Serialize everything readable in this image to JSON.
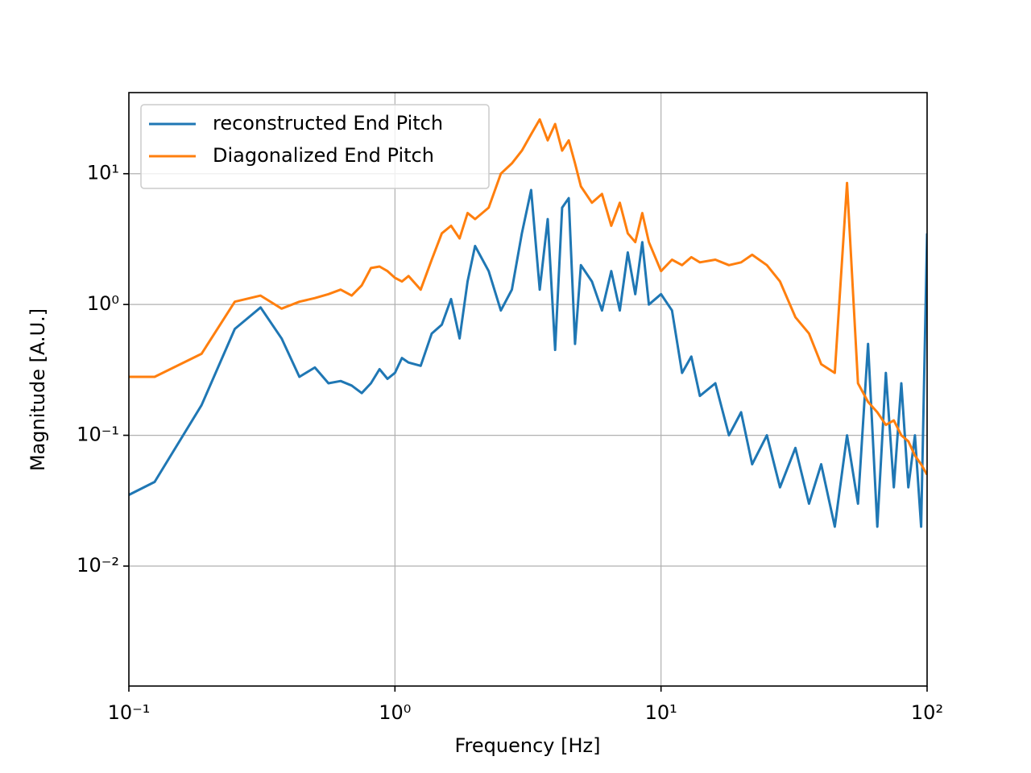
{
  "chart_data": {
    "type": "line",
    "xlabel": "Frequency [Hz]",
    "ylabel": "Magnitude [A.U.]",
    "xscale": "log",
    "yscale": "log",
    "grid": true,
    "legend": "upper left",
    "x": [
      0.1,
      0.125,
      0.1875,
      0.25,
      0.3125,
      0.375,
      0.4375,
      0.5,
      0.5625,
      0.625,
      0.6875,
      0.75,
      0.8125,
      0.875,
      0.9375,
      1.0,
      1.0625,
      1.125,
      1.25,
      1.375,
      1.5,
      1.625,
      1.75,
      1.875,
      2.0,
      2.25,
      2.5,
      2.75,
      3.0,
      3.25,
      3.5,
      3.75,
      4.0,
      4.25,
      4.5,
      4.75,
      5.0,
      5.5,
      6.0,
      6.5,
      7.0,
      7.5,
      8.0,
      8.5,
      9.0,
      10,
      11,
      12,
      13,
      14,
      16,
      18,
      20,
      22,
      25,
      28,
      32,
      36,
      40,
      45,
      50,
      55,
      60,
      65,
      70,
      75,
      80,
      85,
      90,
      95,
      100
    ],
    "series": [
      {
        "name": "reconstructed End Pitch",
        "color": "#1f77b4",
        "values": [
          0.035,
          0.044,
          0.17,
          0.65,
          0.95,
          0.55,
          0.28,
          0.33,
          0.25,
          0.26,
          0.24,
          0.21,
          0.25,
          0.32,
          0.27,
          0.3,
          0.39,
          0.36,
          0.34,
          0.6,
          0.7,
          1.1,
          0.55,
          1.5,
          2.8,
          1.8,
          0.9,
          1.3,
          3.5,
          7.5,
          1.3,
          4.5,
          0.45,
          5.5,
          6.5,
          0.5,
          2.0,
          1.5,
          0.9,
          1.8,
          0.9,
          2.5,
          1.2,
          3.0,
          1.0,
          1.2,
          0.9,
          0.3,
          0.4,
          0.2,
          0.25,
          0.1,
          0.15,
          0.06,
          0.1,
          0.04,
          0.08,
          0.03,
          0.06,
          0.02,
          0.1,
          0.03,
          0.5,
          0.02,
          0.3,
          0.04,
          0.25,
          0.04,
          0.1,
          0.02,
          3.5
        ]
      },
      {
        "name": "Diagonalized End Pitch",
        "color": "#ff7f0e",
        "values": [
          0.28,
          0.28,
          0.42,
          1.05,
          1.17,
          0.93,
          1.05,
          1.12,
          1.2,
          1.3,
          1.17,
          1.4,
          1.9,
          1.95,
          1.8,
          1.6,
          1.5,
          1.65,
          1.3,
          2.2,
          3.5,
          4.0,
          3.2,
          5.0,
          4.5,
          5.5,
          10,
          12,
          15,
          20,
          26,
          18,
          24,
          15,
          18,
          12,
          8,
          6,
          7,
          4,
          6,
          3.5,
          3,
          5,
          3,
          1.8,
          2.2,
          2.0,
          2.3,
          2.1,
          2.2,
          2.0,
          2.1,
          2.4,
          2.0,
          1.5,
          0.8,
          0.6,
          0.35,
          0.3,
          8.5,
          0.25,
          0.18,
          0.15,
          0.12,
          0.13,
          0.1,
          0.09,
          0.07,
          0.06,
          0.05
        ]
      }
    ],
    "xlim": [
      0.1,
      100
    ],
    "ylim": [
      0.00121,
      41.7
    ],
    "xticks": [
      {
        "value": 0.1,
        "label": "10⁻¹"
      },
      {
        "value": 1,
        "label": "10⁰"
      },
      {
        "value": 10,
        "label": "10¹"
      },
      {
        "value": 100,
        "label": "10²"
      }
    ],
    "yticks": [
      {
        "value": 0.01,
        "label": "10⁻²"
      },
      {
        "value": 0.1,
        "label": "10⁻¹"
      },
      {
        "value": 1,
        "label": "10⁰"
      },
      {
        "value": 10,
        "label": "10¹"
      }
    ]
  }
}
